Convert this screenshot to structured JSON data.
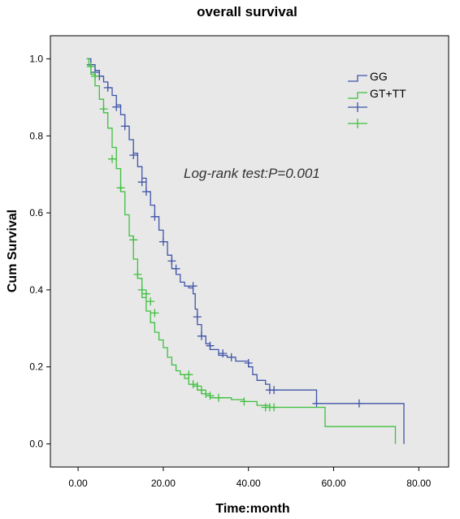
{
  "chart_data": {
    "type": "line",
    "title": "overall survival",
    "xlabel": "Time:month",
    "ylabel": "Cum Survival",
    "xlim": [
      -6.5,
      87
    ],
    "ylim": [
      -0.06,
      1.06
    ],
    "xticks": [
      "0.00",
      "20.00",
      "40.00",
      "60.00",
      "80.00"
    ],
    "xtick_values": [
      0,
      20,
      40,
      60,
      80
    ],
    "yticks": [
      "0.0",
      "0.2",
      "0.4",
      "0.6",
      "0.8",
      "1.0"
    ],
    "ytick_values": [
      0,
      0.2,
      0.4,
      0.6,
      0.8,
      1.0
    ],
    "grid": false,
    "legend_position": "top-right",
    "annotation": "Log-rank test:P=0.001",
    "legend": [
      "GG",
      "GT+TT",
      "",
      ""
    ],
    "colors": {
      "background": "#e8e8e8",
      "gg": "#3f55a8",
      "gttt": "#3fbf3f"
    },
    "series": [
      {
        "name": "GG",
        "steps": [
          [
            2,
            1.0
          ],
          [
            3,
            0.985
          ],
          [
            4,
            0.97
          ],
          [
            5,
            0.955
          ],
          [
            6,
            0.94
          ],
          [
            7,
            0.925
          ],
          [
            8,
            0.905
          ],
          [
            9,
            0.88
          ],
          [
            10,
            0.855
          ],
          [
            11,
            0.825
          ],
          [
            12,
            0.79
          ],
          [
            13,
            0.755
          ],
          [
            14,
            0.72
          ],
          [
            15,
            0.69
          ],
          [
            16,
            0.655
          ],
          [
            17,
            0.62
          ],
          [
            18,
            0.59
          ],
          [
            19,
            0.555
          ],
          [
            20,
            0.525
          ],
          [
            21,
            0.49
          ],
          [
            22,
            0.455
          ],
          [
            23,
            0.44
          ],
          [
            24,
            0.42
          ],
          [
            25,
            0.41
          ],
          [
            26,
            0.405
          ],
          [
            27,
            0.39
          ],
          [
            27.5,
            0.35
          ],
          [
            28,
            0.31
          ],
          [
            29,
            0.28
          ],
          [
            30,
            0.26
          ],
          [
            31,
            0.245
          ],
          [
            33,
            0.23
          ],
          [
            35,
            0.225
          ],
          [
            37,
            0.215
          ],
          [
            40,
            0.2
          ],
          [
            41,
            0.18
          ],
          [
            42,
            0.165
          ],
          [
            44,
            0.155
          ],
          [
            45,
            0.14
          ],
          [
            47,
            0.14
          ],
          [
            55,
            0.14
          ],
          [
            56,
            0.105
          ],
          [
            66,
            0.105
          ],
          [
            76.5,
            0.105
          ],
          [
            76.5,
            0.0
          ]
        ],
        "censored": [
          [
            3,
            0.985
          ],
          [
            4,
            0.965
          ],
          [
            5,
            0.955
          ],
          [
            7,
            0.925
          ],
          [
            9,
            0.875
          ],
          [
            11,
            0.825
          ],
          [
            13,
            0.75
          ],
          [
            15,
            0.68
          ],
          [
            16,
            0.655
          ],
          [
            18,
            0.59
          ],
          [
            20,
            0.525
          ],
          [
            22,
            0.475
          ],
          [
            23,
            0.455
          ],
          [
            27,
            0.41
          ],
          [
            28,
            0.33
          ],
          [
            29,
            0.28
          ],
          [
            31,
            0.255
          ],
          [
            34,
            0.235
          ],
          [
            36,
            0.225
          ],
          [
            40,
            0.21
          ],
          [
            45,
            0.14
          ],
          [
            46,
            0.14
          ],
          [
            56,
            0.105
          ],
          [
            66,
            0.105
          ]
        ]
      },
      {
        "name": "GT+TT",
        "steps": [
          [
            2,
            1.0
          ],
          [
            2.5,
            0.98
          ],
          [
            3,
            0.96
          ],
          [
            4,
            0.93
          ],
          [
            5,
            0.895
          ],
          [
            6,
            0.86
          ],
          [
            7,
            0.82
          ],
          [
            8,
            0.77
          ],
          [
            9,
            0.715
          ],
          [
            10,
            0.655
          ],
          [
            11,
            0.595
          ],
          [
            12,
            0.54
          ],
          [
            13,
            0.48
          ],
          [
            14,
            0.43
          ],
          [
            15,
            0.38
          ],
          [
            16,
            0.345
          ],
          [
            17,
            0.315
          ],
          [
            18,
            0.29
          ],
          [
            19,
            0.27
          ],
          [
            20,
            0.25
          ],
          [
            21,
            0.225
          ],
          [
            22,
            0.205
          ],
          [
            23,
            0.19
          ],
          [
            24,
            0.18
          ],
          [
            25,
            0.17
          ],
          [
            26,
            0.155
          ],
          [
            28,
            0.14
          ],
          [
            29,
            0.13
          ],
          [
            31,
            0.12
          ],
          [
            33,
            0.12
          ],
          [
            36,
            0.115
          ],
          [
            39,
            0.11
          ],
          [
            42,
            0.1
          ],
          [
            45,
            0.095
          ],
          [
            49,
            0.095
          ],
          [
            57,
            0.095
          ],
          [
            58,
            0.045
          ],
          [
            74.5,
            0.045
          ],
          [
            74.5,
            0.0
          ]
        ],
        "censored": [
          [
            3,
            0.98
          ],
          [
            4,
            0.955
          ],
          [
            6,
            0.87
          ],
          [
            8,
            0.74
          ],
          [
            10,
            0.665
          ],
          [
            13,
            0.53
          ],
          [
            14,
            0.44
          ],
          [
            15,
            0.4
          ],
          [
            16,
            0.39
          ],
          [
            17,
            0.37
          ],
          [
            18,
            0.34
          ],
          [
            26,
            0.18
          ],
          [
            27,
            0.155
          ],
          [
            28,
            0.15
          ],
          [
            29,
            0.14
          ],
          [
            30,
            0.13
          ],
          [
            31,
            0.125
          ],
          [
            33,
            0.12
          ],
          [
            39,
            0.11
          ],
          [
            44,
            0.095
          ],
          [
            45,
            0.095
          ],
          [
            46,
            0.095
          ]
        ]
      }
    ]
  }
}
